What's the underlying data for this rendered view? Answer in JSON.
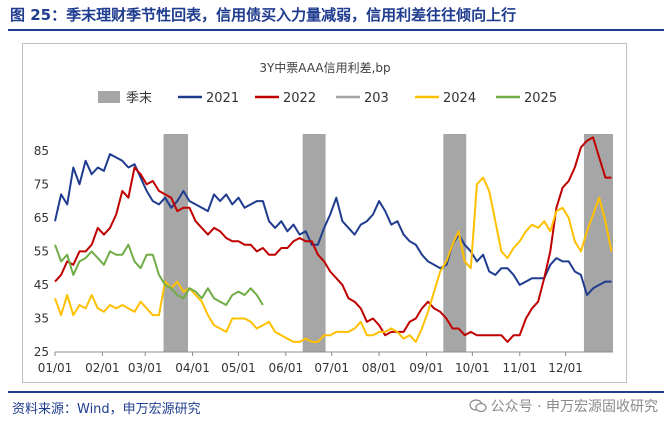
{
  "header": {
    "title": "图 25：季末理财季节性回表，信用债买入力量减弱，信用利差往往倾向上行"
  },
  "footer": {
    "source": "资料来源：Wind，申万宏源研究",
    "watermark": "公众号 · 申万宏源固收研究"
  },
  "colors": {
    "brand": "#1f3c8f",
    "quarter_end": "#a6a6a6",
    "s2021": "#1f3c8f",
    "s2022": "#c00000",
    "s203": "#a6a6a6",
    "s2024": "#ffc000",
    "s2025": "#70ad47"
  },
  "chart_data": {
    "type": "line",
    "title": "3Y中票AAA信用利差,bp",
    "ylim": [
      25,
      90
    ],
    "yticks": [
      25,
      35,
      45,
      55,
      65,
      75,
      85
    ],
    "xlim": [
      1,
      366
    ],
    "xtick_labels": [
      "01/01",
      "02/01",
      "03/01",
      "04/01",
      "05/01",
      "06/01",
      "07/01",
      "08/01",
      "09/01",
      "10/01",
      "11/01",
      "12/01"
    ],
    "xtick_days": [
      1,
      32,
      60,
      91,
      121,
      152,
      182,
      213,
      244,
      274,
      305,
      335
    ],
    "legend_position": "top",
    "quarter_end_bands": [
      [
        72,
        88
      ],
      [
        163,
        178
      ],
      [
        255,
        270
      ],
      [
        347,
        366
      ]
    ],
    "series": [
      {
        "name": "季末",
        "kind": "band",
        "color": "#a6a6a6",
        "x": [],
        "y": []
      },
      {
        "name": "2021",
        "color": "#1f3c8f",
        "x": [
          1,
          5,
          9,
          13,
          17,
          21,
          25,
          29,
          33,
          37,
          41,
          45,
          49,
          53,
          57,
          61,
          65,
          69,
          73,
          77,
          81,
          85,
          89,
          93,
          97,
          101,
          105,
          109,
          113,
          117,
          121,
          125,
          129,
          133,
          137,
          141,
          145,
          149,
          153,
          157,
          161,
          165,
          169,
          173,
          177,
          181,
          185,
          189,
          193,
          197,
          201,
          205,
          209,
          213,
          217,
          221,
          225,
          229,
          233,
          237,
          241,
          245,
          249,
          253,
          257,
          261,
          265,
          269,
          273,
          277,
          281,
          285,
          289,
          293,
          297,
          301,
          305,
          309,
          313,
          317,
          321,
          325,
          329,
          333,
          337,
          341,
          345,
          349,
          353,
          357,
          361,
          365
        ],
        "y": [
          64,
          72,
          69,
          80,
          75,
          82,
          78,
          80,
          79,
          84,
          83,
          82,
          80,
          81,
          77,
          73,
          70,
          69,
          71,
          68,
          70,
          73,
          70,
          69,
          68,
          67,
          72,
          70,
          72,
          69,
          71,
          68,
          69,
          70,
          70,
          64,
          62,
          64,
          61,
          63,
          60,
          61,
          57,
          57,
          62,
          66,
          71,
          64,
          62,
          60,
          63,
          64,
          66,
          70,
          67,
          63,
          64,
          60,
          58,
          57,
          54,
          52,
          51,
          50,
          51,
          57,
          60,
          57,
          55,
          52,
          54,
          49,
          48,
          50,
          50,
          48,
          45,
          46,
          47,
          47,
          47,
          51,
          53,
          52,
          52,
          49,
          48,
          42,
          44,
          45,
          46,
          46
        ]
      },
      {
        "name": "2022",
        "color": "#c00000",
        "x": [
          1,
          5,
          9,
          13,
          17,
          21,
          25,
          29,
          33,
          37,
          41,
          45,
          49,
          53,
          57,
          61,
          65,
          69,
          73,
          77,
          81,
          85,
          89,
          93,
          97,
          101,
          105,
          109,
          113,
          117,
          121,
          125,
          129,
          133,
          137,
          141,
          145,
          149,
          153,
          157,
          161,
          165,
          169,
          173,
          177,
          181,
          185,
          189,
          193,
          197,
          201,
          205,
          209,
          213,
          217,
          221,
          225,
          229,
          233,
          237,
          241,
          245,
          249,
          253,
          257,
          261,
          265,
          269,
          273,
          277,
          281,
          285,
          289,
          293,
          297,
          301,
          305,
          309,
          313,
          317,
          321,
          325,
          329,
          333,
          337,
          341,
          345,
          349,
          353,
          357,
          361,
          365
        ],
        "y": [
          46,
          48,
          52,
          51,
          55,
          55,
          57,
          62,
          60,
          62,
          66,
          73,
          71,
          80,
          78,
          75,
          76,
          73,
          72,
          71,
          67,
          68,
          68,
          64,
          62,
          60,
          62,
          61,
          59,
          58,
          58,
          57,
          57,
          55,
          56,
          54,
          54,
          56,
          56,
          58,
          59,
          58,
          58,
          54,
          52,
          49,
          47,
          45,
          41,
          40,
          38,
          34,
          35,
          33,
          30,
          31,
          31,
          31,
          34,
          35,
          38,
          40,
          38,
          37,
          35,
          32,
          32,
          30,
          31,
          30,
          30,
          30,
          30,
          30,
          28,
          30,
          30,
          35,
          38,
          40,
          47,
          55,
          68,
          74,
          76,
          80,
          86,
          88,
          89,
          83,
          77,
          77
        ]
      },
      {
        "name": "203",
        "color": "#a6a6a6",
        "x": [],
        "y": []
      },
      {
        "name": "2024",
        "color": "#ffc000",
        "x": [
          1,
          5,
          9,
          13,
          17,
          21,
          25,
          29,
          33,
          37,
          41,
          45,
          49,
          53,
          57,
          61,
          65,
          69,
          73,
          77,
          81,
          85,
          89,
          93,
          97,
          101,
          105,
          109,
          113,
          117,
          121,
          125,
          129,
          133,
          137,
          141,
          145,
          149,
          153,
          157,
          161,
          165,
          169,
          173,
          177,
          181,
          185,
          189,
          193,
          197,
          201,
          205,
          209,
          213,
          217,
          221,
          225,
          229,
          233,
          237,
          241,
          245,
          249,
          253,
          257,
          261,
          265,
          269,
          273,
          277,
          281,
          285,
          289,
          293,
          297,
          301,
          305,
          309,
          313,
          317,
          321,
          325,
          329,
          333,
          337,
          341,
          345,
          349,
          353,
          357,
          361,
          365
        ],
        "y": [
          41,
          36,
          42,
          36,
          39,
          38,
          42,
          38,
          37,
          39,
          38,
          39,
          38,
          37,
          40,
          38,
          36,
          36,
          46,
          44,
          46,
          43,
          44,
          42,
          40,
          36,
          33,
          32,
          31,
          35,
          35,
          35,
          34,
          32,
          33,
          34,
          31,
          30,
          29,
          28,
          28,
          29,
          28,
          28,
          30,
          30,
          31,
          31,
          31,
          32,
          34,
          30,
          30,
          31,
          31,
          32,
          31,
          29,
          30,
          28,
          32,
          37,
          43,
          49,
          52,
          57,
          61,
          52,
          50,
          75,
          77,
          73,
          64,
          55,
          53,
          56,
          58,
          61,
          63,
          62,
          64,
          61,
          67,
          68,
          65,
          58,
          55,
          61,
          66,
          71,
          64,
          55
        ]
      },
      {
        "name": "2025",
        "color": "#70ad47",
        "x": [
          1,
          5,
          9,
          13,
          17,
          21,
          25,
          29,
          33,
          37,
          41,
          45,
          49,
          53,
          57,
          61,
          65,
          69,
          73,
          77,
          81,
          85,
          89,
          93,
          97,
          101,
          105,
          109,
          113,
          117,
          121,
          125,
          129,
          133,
          137
        ],
        "y": [
          57,
          52,
          54,
          48,
          52,
          53,
          55,
          53,
          51,
          55,
          54,
          54,
          57,
          52,
          50,
          54,
          54,
          48,
          45,
          44,
          42,
          41,
          44,
          43,
          41,
          44,
          41,
          40,
          39,
          42,
          43,
          42,
          44,
          42,
          39
        ]
      }
    ]
  }
}
